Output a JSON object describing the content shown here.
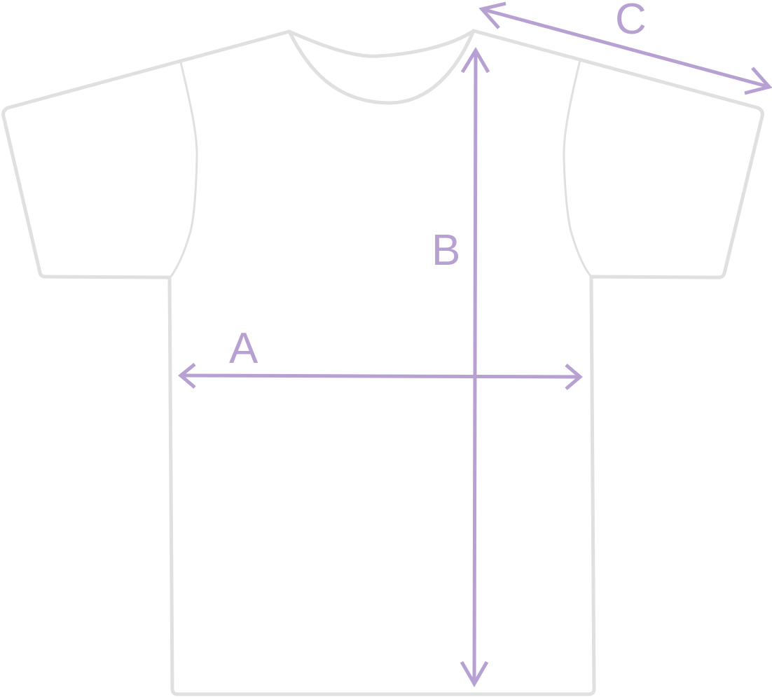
{
  "colors": {
    "outline": "#e0e0e0",
    "measure": "#b7a0d2",
    "background": "#ffffff"
  },
  "labels": {
    "a": "A",
    "b": "B",
    "c": "C"
  }
}
